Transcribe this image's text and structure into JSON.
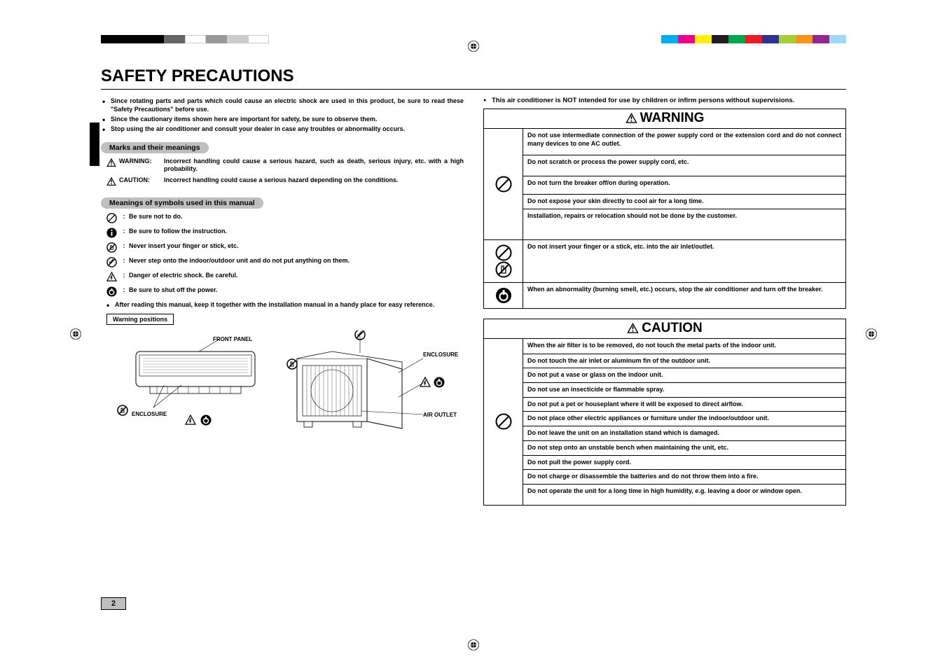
{
  "bw_bar": [
    "#000000",
    "#000000",
    "#000000",
    "#666666",
    "#ffffff",
    "#999999",
    "#cccccc",
    "#ffffff"
  ],
  "color_bar": [
    "#00aeef",
    "#ec008c",
    "#fff200",
    "#231f20",
    "#00a651",
    "#ed1c24",
    "#2e3192",
    "#a6ce39",
    "#f7941d",
    "#92278f",
    "#a0d9f7"
  ],
  "title": "SAFETY PRECAUTIONS",
  "intro_bullets": [
    "Since rotating parts and parts which could cause an electric shock are used in this product, be sure to read these \"Safety Precautions\" before use.",
    "Since the cautionary items shown here are important for safety, be sure to observe them.",
    "Stop using the air conditioner and consult your dealer in case any troubles or abnormality occurs."
  ],
  "pill_marks": "Marks and their meanings",
  "def_warning_label": "WARNING:",
  "def_warning_text": "Incorrect handling could cause a serious hazard, such as death, serious injury, etc. with a high probability.",
  "def_caution_label": "CAUTION:",
  "def_caution_text": "Incorrect handling could cause a serious hazard depending on the conditions.",
  "pill_symbols": "Meanings of symbols used in this manual",
  "symbol_rows": [
    {
      "icon": "prohibit",
      "text": "Be sure not to do."
    },
    {
      "icon": "info",
      "text": "Be sure to follow the instruction."
    },
    {
      "icon": "nofinger",
      "text": "Never insert your finger or stick, etc."
    },
    {
      "icon": "nostep",
      "text": "Never step onto the indoor/outdoor unit and do not put anything on them."
    },
    {
      "icon": "shock",
      "text": "Danger of electric shock. Be careful."
    },
    {
      "icon": "power",
      "text": "Be sure to shut off the power."
    }
  ],
  "after_reading": "After reading this manual, keep it together with the installation manual in a handy place for easy reference.",
  "warning_positions": "Warning positions",
  "diag_labels": {
    "front_panel": "FRONT PANEL",
    "enclosure": "ENCLOSURE",
    "air_outlet": "AIR OUTLET"
  },
  "right_top_note": "This air conditioner is NOT intended for use by children or infirm persons without supervisions.",
  "warning_caption": "WARNING",
  "caution_caption": "CAUTION",
  "warning_rows": [
    {
      "icon": [
        "prohibit"
      ],
      "rows": [
        "Do not use intermediate connection of the power supply cord or the extension cord and do not connect many devices to one AC outlet.",
        "Do not scratch or process the power supply cord, etc.",
        "Do not turn the breaker off/on during operation.",
        "Do not expose your skin directly to cool air for a long time.",
        "Installation, repairs or relocation should not be done by the customer."
      ],
      "heights": [
        38,
        30,
        26,
        20,
        44
      ]
    },
    {
      "icon": [
        "prohibit",
        "nofinger"
      ],
      "rows": [
        "Do not insert your finger or a stick, etc. into the air inlet/outlet."
      ],
      "heights": [
        34
      ]
    },
    {
      "icon": [
        "power"
      ],
      "rows": [
        "When an abnormality (burning smell, etc.) occurs, stop the air conditioner and turn off the breaker."
      ],
      "heights": [
        34
      ]
    }
  ],
  "caution_rows": [
    {
      "icon": [
        "prohibit"
      ],
      "rows": [
        "When the air filter is to be removed, do not touch the metal parts of the indoor unit.",
        "Do not touch the air inlet or aluminum fin of the outdoor unit.",
        "Do not put a vase or glass on the indoor unit.",
        "Do not use an insecticide or flammable spray.",
        "Do not put a pet or houseplant where it will be exposed to direct airflow.",
        "Do not place other electric appliances or furniture under the indoor/outdoor unit.",
        "Do not leave the unit on an installation stand which is damaged.",
        "Do not step onto an unstable bench when maintaining the unit, etc.",
        "Do not pull the power supply cord.",
        "Do not charge or disassemble the batteries and do not throw them into a fire.",
        "Do not operate the unit for a long time in high humidity, e.g. leaving a door or window open."
      ],
      "heights": [
        22,
        20,
        20,
        20,
        20,
        20,
        20,
        20,
        20,
        20,
        30
      ]
    }
  ],
  "page_number": "2"
}
